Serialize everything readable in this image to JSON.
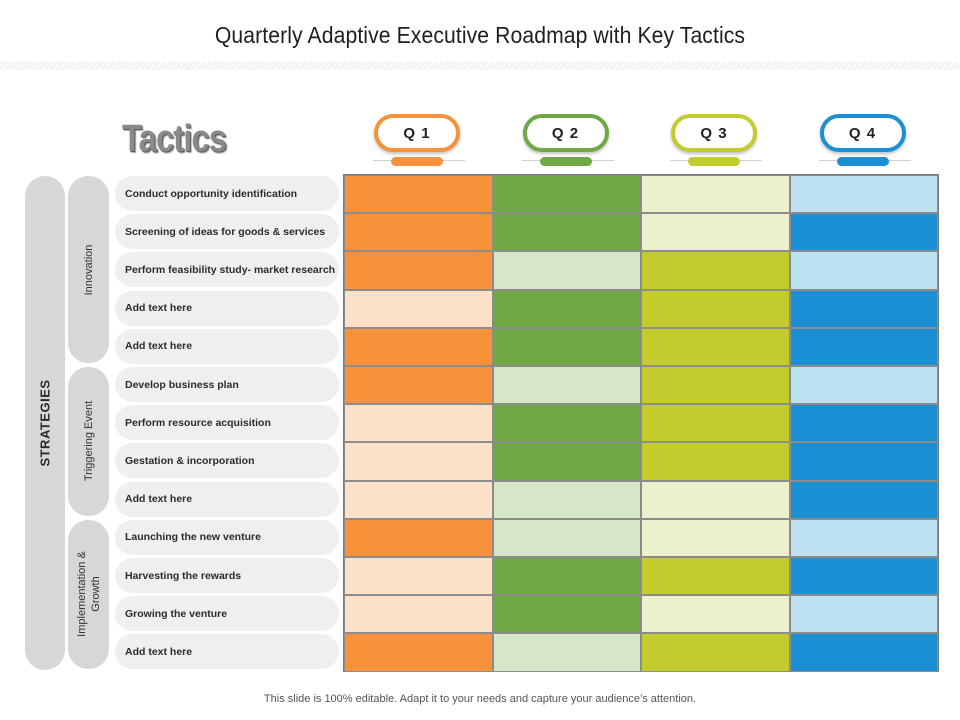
{
  "title": "Quarterly Adaptive Executive Roadmap with Key Tactics",
  "tactics_heading": "Tactics",
  "outer_label": "STRATEGIES",
  "quarters": [
    {
      "label": "Q 1",
      "color": "#f7923a"
    },
    {
      "label": "Q 2",
      "color": "#6fa844"
    },
    {
      "label": "Q 3",
      "color": "#c2cc2c"
    },
    {
      "label": "Q 4",
      "color": "#1a8fd4"
    }
  ],
  "groups": [
    {
      "label": "Innovation",
      "rows": 5
    },
    {
      "label": "Triggering Event",
      "rows": 4
    },
    {
      "label": "Implementation & Growth",
      "rows": 4
    }
  ],
  "tactics": [
    "Conduct opportunity identification",
    "Screening of ideas for goods & services",
    "Perform feasibility study- market research",
    "Add text here",
    "Add text here",
    "Develop business plan",
    "Perform resource acquisition",
    "Gestation & incorporation",
    "Add text here",
    "Launching the new venture",
    "Harvesting the rewards",
    "Growing the venture",
    "Add text here"
  ],
  "palette": {
    "q1": {
      "dark": "#f7923a",
      "light": "#fde0c8"
    },
    "q2": {
      "dark": "#6fa844",
      "light": "#d6e6c8"
    },
    "q3": {
      "dark": "#c2cc2c",
      "light": "#edf0cc"
    },
    "q4": {
      "dark": "#1a8fd4",
      "light": "#bde0f3"
    }
  },
  "matrix": [
    [
      "dark",
      "dark",
      "light",
      "light"
    ],
    [
      "dark",
      "dark",
      "light",
      "dark"
    ],
    [
      "dark",
      "light",
      "dark",
      "light"
    ],
    [
      "light",
      "dark",
      "dark",
      "dark"
    ],
    [
      "dark",
      "dark",
      "dark",
      "dark"
    ],
    [
      "dark",
      "light",
      "dark",
      "light"
    ],
    [
      "light",
      "dark",
      "dark",
      "dark"
    ],
    [
      "light",
      "dark",
      "dark",
      "dark"
    ],
    [
      "light",
      "light",
      "light",
      "dark"
    ],
    [
      "dark",
      "light",
      "light",
      "light"
    ],
    [
      "light",
      "dark",
      "dark",
      "dark"
    ],
    [
      "light",
      "dark",
      "light",
      "light"
    ],
    [
      "dark",
      "light",
      "dark",
      "dark"
    ]
  ],
  "footer": "This slide is 100% editable.  Adapt it to your needs and capture your audience’s attention."
}
